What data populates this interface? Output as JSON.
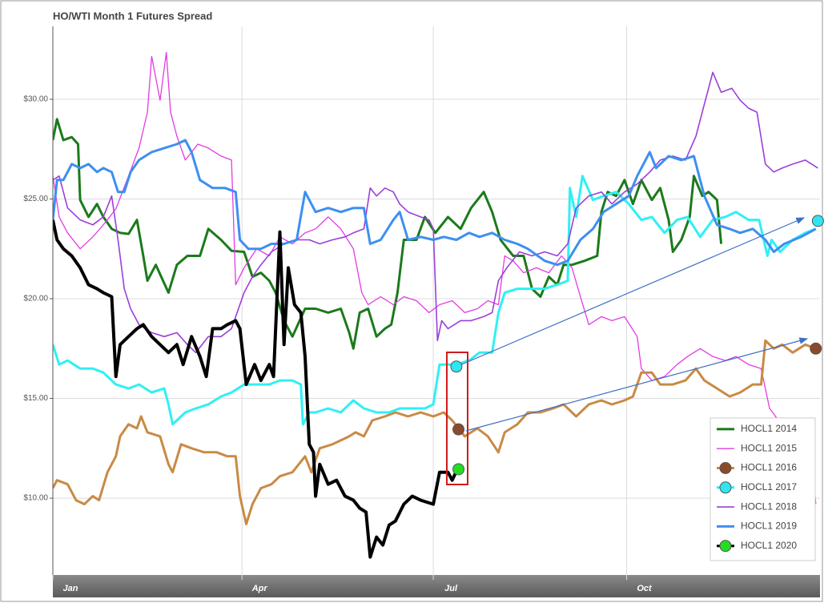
{
  "chart_data": {
    "type": "line",
    "title": "HO/WTI Month 1 Futures Spread",
    "xlim": [
      0,
      365
    ],
    "xticks": [
      {
        "value": 0,
        "label": "Jan"
      },
      {
        "value": 90,
        "label": "Apr"
      },
      {
        "value": 181,
        "label": "Jul"
      },
      {
        "value": 273,
        "label": "Oct"
      }
    ],
    "ylim": [
      6.15,
      33.65
    ],
    "yticks": [
      {
        "value": 10,
        "label": "$10.00"
      },
      {
        "value": 15,
        "label": "$15.00"
      },
      {
        "value": 20,
        "label": "$20.00"
      },
      {
        "value": 25,
        "label": "$25.00"
      },
      {
        "value": 30,
        "label": "$30.00"
      }
    ],
    "grid": true,
    "legend": "bottom-right",
    "series": [
      {
        "name": "HOCL1 2014",
        "color": "#1b7a1b",
        "line_width": 3,
        "x": [
          0,
          2,
          5,
          9,
          12,
          13,
          17,
          21,
          24,
          28,
          32,
          36,
          40,
          43,
          45,
          49,
          55,
          59,
          64,
          70,
          74,
          80,
          85,
          91,
          95,
          99,
          103,
          106,
          110,
          114,
          120,
          125,
          131,
          137,
          141,
          143,
          146,
          150,
          154,
          158,
          161,
          164,
          167,
          173,
          177,
          182,
          188,
          194,
          199,
          205,
          209,
          213,
          219,
          224,
          228,
          232,
          236,
          240,
          243,
          247,
          253,
          259,
          261,
          264,
          268,
          272,
          276,
          280,
          285,
          289,
          293,
          295,
          299,
          303,
          305,
          309,
          312,
          316,
          318
        ],
        "values": [
          27.95,
          29.0,
          27.95,
          28.1,
          27.75,
          24.95,
          24.1,
          24.75,
          24.1,
          23.5,
          23.3,
          23.25,
          23.95,
          22.15,
          20.9,
          21.7,
          20.3,
          21.7,
          22.15,
          22.15,
          23.5,
          22.95,
          22.4,
          22.35,
          21.1,
          21.3,
          20.9,
          20.3,
          18.9,
          18.1,
          19.5,
          19.5,
          19.3,
          19.5,
          18.3,
          17.5,
          19.3,
          19.5,
          18.1,
          18.5,
          18.7,
          20.3,
          22.95,
          22.95,
          24.1,
          23.3,
          24.1,
          23.5,
          24.55,
          25.35,
          24.35,
          22.95,
          22.15,
          22.15,
          20.5,
          20.1,
          21.1,
          20.7,
          21.7,
          21.7,
          21.9,
          22.15,
          24.35,
          25.35,
          25.15,
          25.95,
          24.75,
          25.95,
          24.95,
          25.55,
          23.95,
          22.35,
          22.95,
          24.1,
          26.15,
          25.15,
          25.35,
          24.95,
          22.75
        ]
      },
      {
        "name": "HOCL1 2015",
        "color": "#e33be3",
        "line_width": 1.3,
        "x": [
          0,
          3,
          7,
          13,
          19,
          24,
          30,
          36,
          41,
          45,
          47,
          51,
          54,
          56,
          59,
          63,
          69,
          74,
          80,
          85,
          87,
          91,
          97,
          103,
          108,
          114,
          120,
          125,
          131,
          137,
          143,
          147,
          150,
          156,
          162,
          167,
          173,
          179,
          184,
          190,
          196,
          202,
          207,
          212,
          215,
          219,
          224,
          230,
          236,
          242,
          247,
          251,
          255,
          261,
          266,
          272,
          278,
          280,
          285,
          291,
          297,
          302,
          308,
          314,
          320,
          325,
          331,
          337,
          341,
          342.5,
          352,
          361.5,
          363
        ],
        "values": [
          26.15,
          24.1,
          23.3,
          22.5,
          23.1,
          23.7,
          24.5,
          26.15,
          27.55,
          29.35,
          32.15,
          29.95,
          32.35,
          29.35,
          28.15,
          26.95,
          27.75,
          27.55,
          27.15,
          26.95,
          20.7,
          21.55,
          22.5,
          22.15,
          23.1,
          22.75,
          23.3,
          23.5,
          24.1,
          23.5,
          22.5,
          20.3,
          19.7,
          20.1,
          19.7,
          20.1,
          19.9,
          19.3,
          19.7,
          19.9,
          19.3,
          19.5,
          19.9,
          19.7,
          22.15,
          21.9,
          21.3,
          21.55,
          21.3,
          22.15,
          21.55,
          20.1,
          18.7,
          19.1,
          18.9,
          19.1,
          18.1,
          16.5,
          15.9,
          16.1,
          16.7,
          17.1,
          17.5,
          17.1,
          16.9,
          17.1,
          16.7,
          16.5,
          14.5,
          14.3,
          12.9,
          11.5,
          9.7
        ]
      },
      {
        "name": "HOCL1 2016",
        "color": "#c98a45",
        "line_width": 3,
        "marker_color": "#8b4a2b",
        "x": [
          0,
          2,
          7,
          11,
          15,
          19,
          22,
          26,
          30,
          32,
          36,
          40,
          42,
          45,
          51,
          55,
          57,
          61,
          66,
          72,
          78,
          83,
          87,
          89,
          92,
          95,
          99,
          104,
          108,
          114,
          120,
          123,
          127,
          133,
          137,
          141,
          144,
          148,
          152,
          158,
          163,
          169,
          175,
          181,
          186,
          190,
          193,
          196,
          202,
          207,
          212,
          215,
          221,
          226,
          232,
          238,
          243,
          249,
          255,
          261,
          266,
          272,
          276,
          280,
          285,
          289,
          295,
          301,
          306,
          310,
          316,
          322,
          327,
          333,
          337,
          339,
          343,
          347,
          352,
          358,
          363
        ],
        "values": [
          10.5,
          10.9,
          10.7,
          9.9,
          9.7,
          10.1,
          9.9,
          11.3,
          12.1,
          13.1,
          13.7,
          13.5,
          14.1,
          13.3,
          13.1,
          11.7,
          11.3,
          12.7,
          12.5,
          12.3,
          12.3,
          12.1,
          12.1,
          10.1,
          8.7,
          9.7,
          10.5,
          10.7,
          11.1,
          11.3,
          12.1,
          11.3,
          12.5,
          12.7,
          12.9,
          13.1,
          13.3,
          13.1,
          13.9,
          14.1,
          14.3,
          14.1,
          14.3,
          14.1,
          14.3,
          13.9,
          13.5,
          13.1,
          13.5,
          13.1,
          12.3,
          13.3,
          13.7,
          14.3,
          14.3,
          14.5,
          14.7,
          14.1,
          14.7,
          14.9,
          14.7,
          14.9,
          15.1,
          16.3,
          16.3,
          15.7,
          15.7,
          15.9,
          16.5,
          15.9,
          15.5,
          15.1,
          15.3,
          15.7,
          15.7,
          17.9,
          17.5,
          17.7,
          17.3,
          17.7,
          17.5
        ],
        "markers": {
          "x": [
            193,
            363
          ],
          "values": [
            13.45,
            17.5
          ]
        }
      },
      {
        "name": "HOCL1 2017",
        "color": "#2ef0f5",
        "line_width": 3,
        "marker_color": "#2ee6f0",
        "x": [
          0,
          3,
          7,
          13,
          19,
          24,
          30,
          36,
          41,
          47,
          53,
          55,
          57,
          63,
          68,
          74,
          80,
          85,
          91,
          97,
          103,
          108,
          114,
          118,
          119,
          122,
          125,
          131,
          137,
          143,
          148,
          154,
          160,
          165,
          171,
          177,
          181,
          184,
          188,
          192,
          198,
          203,
          209,
          212,
          215,
          221,
          226,
          234,
          240,
          245,
          246,
          249,
          252,
          257,
          262,
          268,
          274,
          280,
          285,
          291,
          297,
          302,
          308,
          314,
          320,
          325,
          331,
          336,
          340,
          342,
          346,
          352,
          358,
          363
        ],
        "values": [
          17.7,
          16.7,
          16.9,
          16.5,
          16.5,
          16.3,
          15.7,
          15.5,
          15.7,
          15.3,
          15.5,
          14.7,
          13.7,
          14.3,
          14.5,
          14.7,
          15.1,
          15.3,
          15.7,
          15.7,
          15.7,
          15.9,
          15.9,
          15.7,
          13.7,
          14.3,
          14.3,
          14.5,
          14.3,
          14.9,
          14.5,
          14.3,
          14.3,
          14.5,
          14.5,
          14.5,
          14.7,
          16.7,
          16.7,
          16.7,
          16.9,
          17.3,
          17.3,
          19.3,
          20.3,
          20.5,
          20.5,
          20.5,
          20.7,
          20.9,
          25.55,
          24.1,
          26.15,
          24.95,
          25.15,
          25.35,
          24.75,
          23.95,
          24.1,
          23.3,
          23.95,
          24.1,
          23.1,
          23.95,
          24.1,
          24.35,
          23.95,
          23.95,
          22.15,
          22.95,
          22.35,
          22.95,
          23.3,
          23.5
        ],
        "markers": {
          "x": [
            192,
            364
          ],
          "values": [
            16.6,
            23.9
          ]
        }
      },
      {
        "name": "HOCL1 2018",
        "color": "#9b3fd8",
        "line_width": 1.6,
        "x": [
          0,
          3,
          7,
          13,
          19,
          24,
          28,
          31,
          34,
          37,
          41,
          47,
          53,
          59,
          64,
          68,
          74,
          80,
          85,
          91,
          95,
          99,
          104,
          110,
          116,
          122,
          127,
          133,
          139,
          143,
          148,
          151,
          154,
          158,
          162,
          165,
          169,
          175,
          179,
          181,
          183,
          185,
          188,
          194,
          199,
          205,
          209,
          212,
          216,
          222,
          228,
          234,
          240,
          245,
          249,
          255,
          261,
          266,
          272,
          278,
          284,
          289,
          295,
          301,
          306,
          310,
          314,
          318,
          323,
          327,
          331,
          335,
          339,
          343,
          347,
          352,
          358,
          364
        ],
        "values": [
          25.95,
          26.15,
          24.55,
          23.95,
          23.7,
          24.1,
          25.15,
          22.95,
          20.5,
          19.5,
          18.7,
          18.3,
          18.1,
          18.3,
          17.7,
          17.3,
          18.1,
          18.1,
          18.5,
          20.3,
          21.1,
          21.7,
          22.35,
          22.75,
          22.95,
          22.95,
          22.75,
          22.95,
          23.1,
          23.3,
          23.5,
          25.55,
          25.15,
          25.55,
          25.35,
          24.75,
          24.35,
          24.1,
          23.95,
          23.5,
          17.9,
          18.9,
          18.5,
          18.9,
          18.9,
          19.1,
          19.3,
          20.9,
          21.55,
          22.35,
          22.15,
          22.35,
          22.15,
          22.75,
          24.55,
          25.15,
          25.35,
          24.75,
          25.35,
          25.75,
          26.35,
          26.95,
          27.15,
          26.95,
          28.15,
          29.75,
          31.35,
          30.35,
          30.55,
          29.95,
          29.55,
          29.35,
          26.75,
          26.35,
          26.55,
          26.75,
          26.95,
          26.55
        ]
      },
      {
        "name": "HOCL1 2019",
        "color": "#3d8ff0",
        "line_width": 3,
        "x": [
          0,
          2,
          5,
          9,
          13,
          17,
          21,
          24,
          28,
          31,
          34,
          37,
          41,
          47,
          53,
          59,
          63,
          66,
          70,
          76,
          82,
          87,
          89,
          93,
          99,
          104,
          110,
          116,
          120,
          125,
          131,
          137,
          143,
          148,
          151,
          156,
          162,
          165,
          169,
          175,
          181,
          186,
          192,
          198,
          203,
          209,
          215,
          221,
          226,
          234,
          240,
          245,
          251,
          257,
          262,
          268,
          274,
          278,
          284,
          287,
          293,
          299,
          305,
          310,
          316,
          322,
          327,
          333,
          339,
          343,
          348,
          356,
          363
        ],
        "values": [
          23.95,
          25.95,
          25.95,
          26.75,
          26.55,
          26.75,
          26.35,
          26.55,
          26.35,
          25.35,
          25.35,
          26.35,
          26.95,
          27.35,
          27.55,
          27.75,
          27.95,
          27.35,
          25.95,
          25.55,
          25.55,
          25.35,
          22.95,
          22.5,
          22.5,
          22.75,
          22.75,
          22.95,
          25.35,
          24.35,
          24.55,
          24.35,
          24.55,
          24.55,
          22.75,
          22.95,
          23.95,
          24.35,
          22.95,
          23.1,
          22.95,
          23.1,
          22.95,
          23.3,
          23.1,
          23.3,
          22.95,
          22.75,
          22.5,
          21.9,
          21.7,
          21.9,
          22.95,
          23.5,
          24.35,
          24.75,
          25.15,
          26.15,
          27.35,
          26.55,
          27.15,
          26.95,
          27.15,
          25.15,
          23.7,
          23.5,
          23.3,
          23.5,
          22.95,
          22.35,
          22.75,
          23.1,
          23.5
        ]
      },
      {
        "name": "HOCL1 2020",
        "color": "#000000",
        "line_width": 4,
        "marker_color": "#22dd22",
        "x": [
          0,
          2,
          5,
          9,
          13,
          17,
          21,
          24,
          28,
          30,
          32,
          36,
          40,
          43,
          47,
          51,
          55,
          59,
          62,
          66,
          70,
          73,
          76,
          80,
          83,
          87,
          89,
          92,
          96,
          99,
          103,
          105,
          108,
          110,
          112,
          115,
          118,
          120,
          122,
          124,
          125,
          127,
          131,
          135,
          139,
          143,
          146,
          149,
          151,
          154,
          157,
          160,
          163,
          167,
          171,
          175,
          181,
          184,
          188,
          190,
          192
        ],
        "values": [
          23.95,
          22.95,
          22.5,
          22.15,
          21.55,
          20.7,
          20.5,
          20.3,
          20.1,
          16.1,
          17.7,
          18.1,
          18.5,
          18.7,
          18.1,
          17.7,
          17.3,
          17.7,
          16.7,
          18.1,
          17.1,
          16.1,
          18.5,
          18.5,
          18.7,
          18.9,
          18.5,
          15.7,
          16.7,
          15.9,
          16.7,
          16.1,
          23.35,
          17.7,
          21.55,
          19.7,
          19.3,
          17.1,
          12.7,
          12.3,
          10.1,
          11.7,
          10.7,
          10.9,
          10.1,
          9.9,
          9.5,
          9.3,
          7.05,
          8.05,
          7.65,
          8.65,
          8.85,
          9.7,
          10.1,
          9.9,
          9.7,
          11.3,
          11.3,
          10.9,
          11.35
        ],
        "markers": {
          "x": [
            193
          ],
          "values": [
            11.45
          ]
        }
      }
    ]
  }
}
